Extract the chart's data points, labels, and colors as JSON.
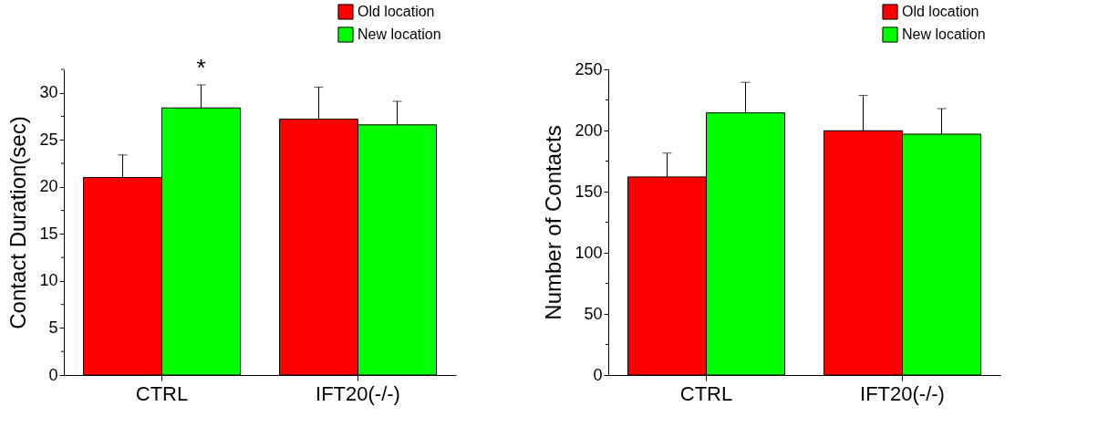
{
  "chart_data": [
    {
      "type": "bar",
      "ylabel": "Contact Duration(sec)",
      "categories": [
        "CTRL",
        "IFT20(-/-)"
      ],
      "series": [
        {
          "name": "Old location",
          "color": "#ff0000",
          "values": [
            21.0,
            27.2
          ],
          "errors": [
            [
              21.0,
              23.4
            ],
            [
              27.2,
              30.6
            ]
          ]
        },
        {
          "name": "New location",
          "color": "#00ff00",
          "values": [
            28.4,
            26.6
          ],
          "errors": [
            [
              28.4,
              30.85
            ],
            [
              26.6,
              29.1
            ]
          ]
        }
      ],
      "ylim": [
        0,
        32.5
      ],
      "yticks": [
        0,
        {
          "value": 2.5,
          "label": null
        },
        5,
        {
          "value": 7.5,
          "label": null
        },
        10,
        {
          "value": 12.5,
          "label": null
        },
        15,
        {
          "value": 17.5,
          "label": null
        },
        20,
        {
          "value": 22.5,
          "label": null
        },
        25,
        {
          "value": 27.5,
          "label": null
        },
        30,
        {
          "value": 32.5,
          "label": null
        }
      ],
      "legend": "top right",
      "annotations": [
        "*"
      ]
    },
    {
      "type": "bar",
      "ylabel": "Number of Contacts",
      "categories": [
        "CTRL",
        "IFT20(-/-)"
      ],
      "series": [
        {
          "name": "Old location",
          "color": "#ff0000",
          "values": [
            162,
            199.8
          ],
          "errors": [
            [
              162,
              181.5
            ],
            [
              199.8,
              228.7
            ]
          ]
        },
        {
          "name": "New location",
          "color": "#00ff00",
          "values": [
            214.4,
            197
          ],
          "errors": [
            [
              214.4,
              239.4
            ],
            [
              197,
              217.9
            ]
          ]
        }
      ],
      "ylim": [
        0,
        250
      ],
      "yticks": [
        0,
        {
          "value": 25,
          "label": null
        },
        50,
        {
          "value": 75,
          "label": null
        },
        100,
        {
          "value": 125,
          "label": null
        },
        150,
        {
          "value": 175,
          "label": null
        },
        200,
        {
          "value": 225,
          "label": null
        },
        250
      ],
      "legend": "top right"
    }
  ]
}
